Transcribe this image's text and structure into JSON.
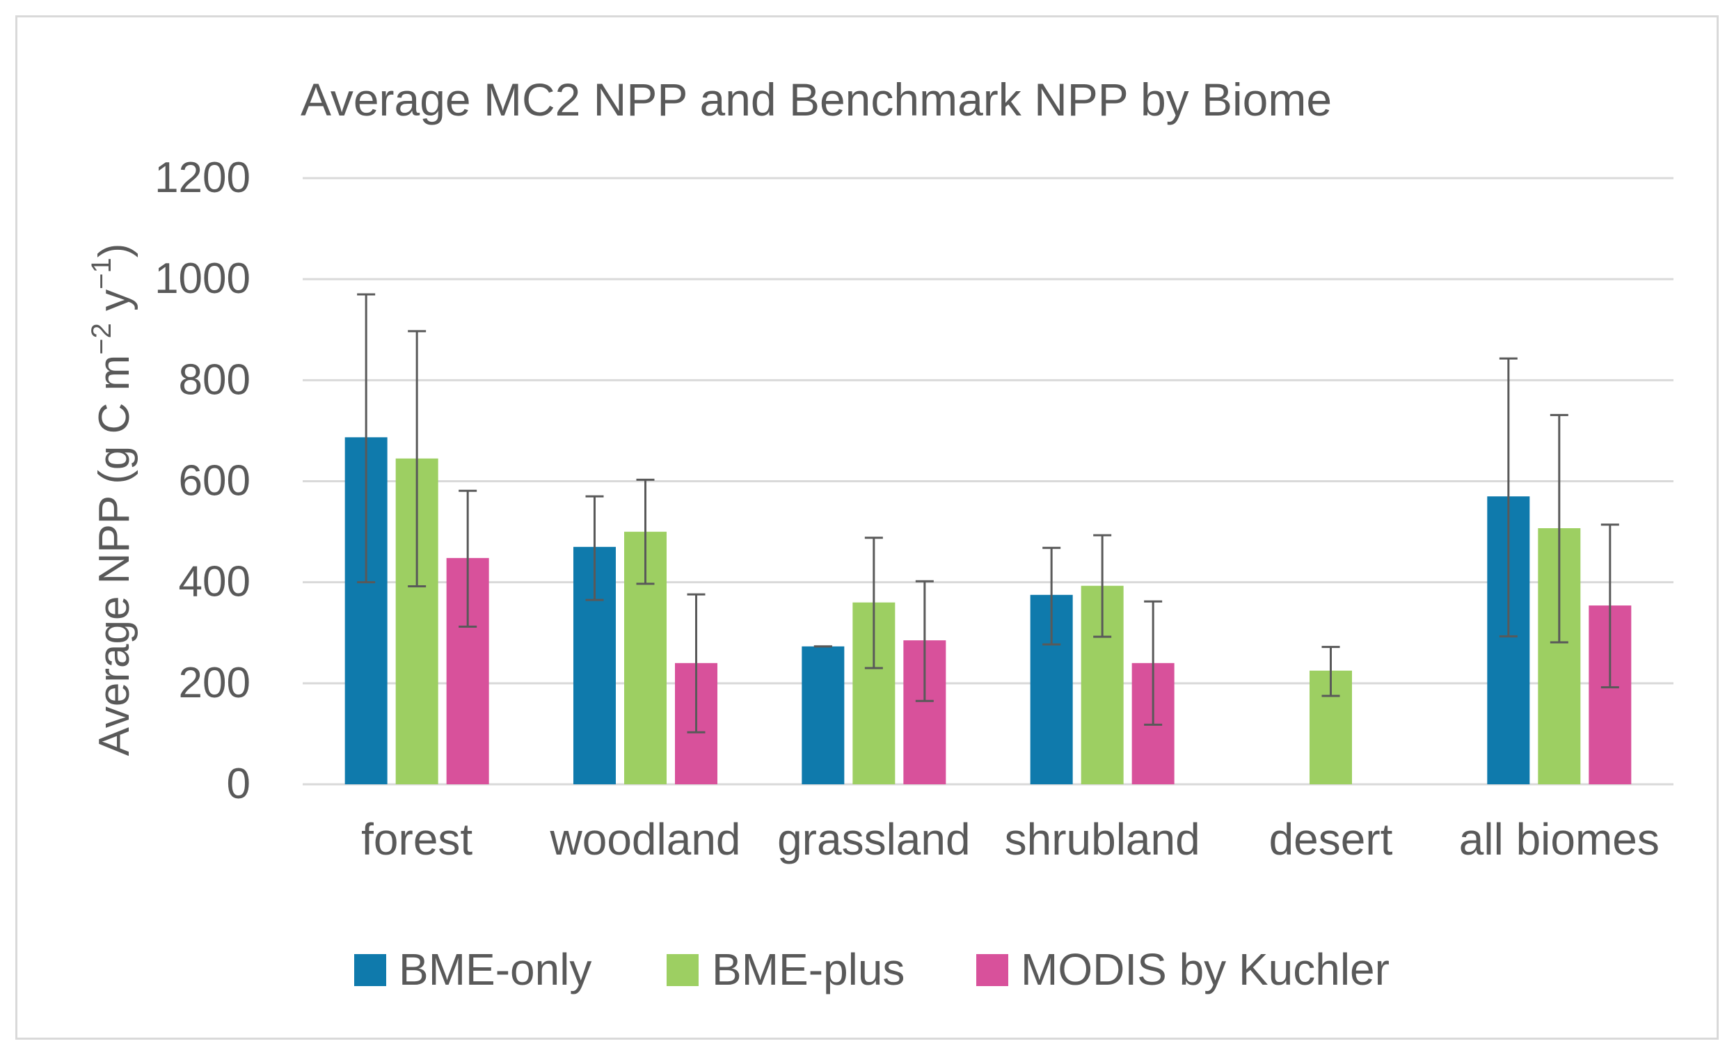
{
  "chart_data": {
    "type": "bar",
    "title": "Average MC2 NPP and Benchmark NPP by Biome",
    "xlabel": "",
    "ylabel": "Average NPP (g C m⁻² y⁻¹)",
    "ylabel_parts": {
      "main": "Average NPP (g C m",
      "exp1": "−2",
      "mid": " y",
      "exp2": "−1",
      "end": ")"
    },
    "ylim": [
      0,
      1200
    ],
    "yticks": [
      0,
      200,
      400,
      600,
      800,
      1000,
      1200
    ],
    "grid": true,
    "legend_position": "bottom",
    "categories": [
      "forest",
      "woodland",
      "grassland",
      "shrubland",
      "desert",
      "all biomes"
    ],
    "series": [
      {
        "name": "BME-only",
        "color": "#0f7aac",
        "values": [
          687,
          470,
          273,
          375,
          null,
          570
        ],
        "error_low": [
          400,
          365,
          273,
          277,
          null,
          293
        ],
        "error_high": [
          970,
          570,
          273,
          468,
          null,
          843
        ]
      },
      {
        "name": "BME-plus",
        "color": "#9dcf62",
        "values": [
          645,
          500,
          360,
          393,
          225,
          507
        ],
        "error_low": [
          392,
          397,
          230,
          292,
          175,
          281
        ],
        "error_high": [
          897,
          603,
          488,
          493,
          272,
          731
        ]
      },
      {
        "name": "MODIS by Kuchler",
        "color": "#d8519b",
        "values": [
          448,
          240,
          285,
          240,
          null,
          354
        ],
        "error_low": [
          312,
          103,
          165,
          118,
          null,
          192
        ],
        "error_high": [
          581,
          376,
          402,
          362,
          null,
          514
        ]
      }
    ]
  }
}
